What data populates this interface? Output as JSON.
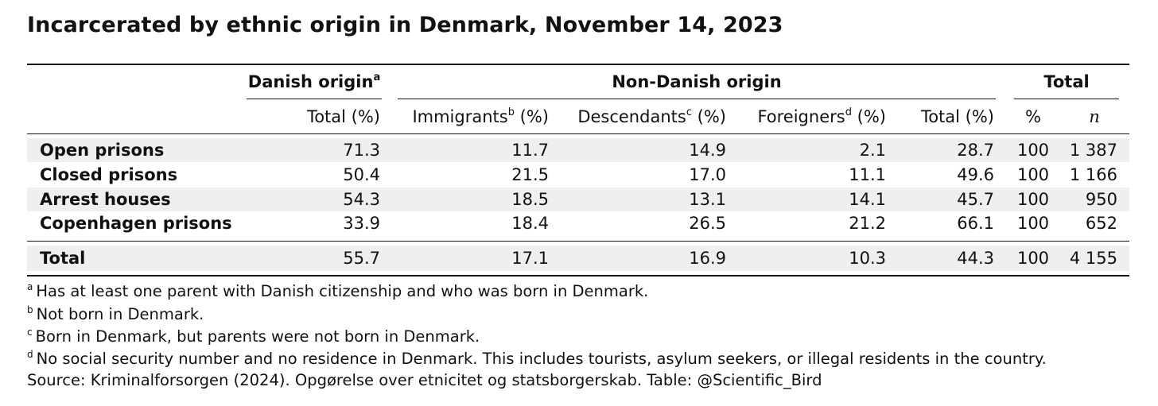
{
  "title": "Incarcerated by ethnic origin in Denmark, November 14, 2023",
  "group_headers": {
    "danish": "Danish origin",
    "danish_sup": "a",
    "non_danish": "Non-Danish origin",
    "total": "Total"
  },
  "col_headers": {
    "danish_total": "Total (%)",
    "immigrants": "Immigrants",
    "immigrants_sup": "b",
    "immigrants_unit": "(%)",
    "descendants": "Descendants",
    "descendants_sup": "c",
    "descendants_unit": "(%)",
    "foreigners": "Foreigners",
    "foreigners_sup": "d",
    "foreigners_unit": "(%)",
    "nd_total": "Total (%)",
    "pct": "%",
    "n": "n"
  },
  "rows": [
    {
      "label": "Open prisons",
      "danish": "71.3",
      "immigrants": "11.7",
      "descendants": "14.9",
      "foreigners": "2.1",
      "nd_total": "28.7",
      "pct": "100",
      "n": "1 387"
    },
    {
      "label": "Closed prisons",
      "danish": "50.4",
      "immigrants": "21.5",
      "descendants": "17.0",
      "foreigners": "11.1",
      "nd_total": "49.6",
      "pct": "100",
      "n": "1 166"
    },
    {
      "label": "Arrest houses",
      "danish": "54.3",
      "immigrants": "18.5",
      "descendants": "13.1",
      "foreigners": "14.1",
      "nd_total": "45.7",
      "pct": "100",
      "n": "950"
    },
    {
      "label": "Copenhagen prisons",
      "danish": "33.9",
      "immigrants": "18.4",
      "descendants": "26.5",
      "foreigners": "21.2",
      "nd_total": "66.1",
      "pct": "100",
      "n": "652"
    }
  ],
  "total_row": {
    "label": "Total",
    "danish": "55.7",
    "immigrants": "17.1",
    "descendants": "16.9",
    "foreigners": "10.3",
    "nd_total": "44.3",
    "pct": "100",
    "n": "4 155"
  },
  "footnotes": [
    {
      "mark": "a",
      "text": "Has at least one parent with Danish citizenship and who was born in Denmark."
    },
    {
      "mark": "b",
      "text": "Not born in Denmark."
    },
    {
      "mark": "c",
      "text": "Born in Denmark, but parents were not born in Denmark."
    },
    {
      "mark": "d",
      "text": "No social security number and no residence in Denmark. This includes tourists, asylum seekers, or illegal residents in the country."
    }
  ],
  "source": "Source: Kriminalforsorgen (2024). Opgørelse over etnicitet og statsborgerskab. Table: @Scientific_Bird"
}
